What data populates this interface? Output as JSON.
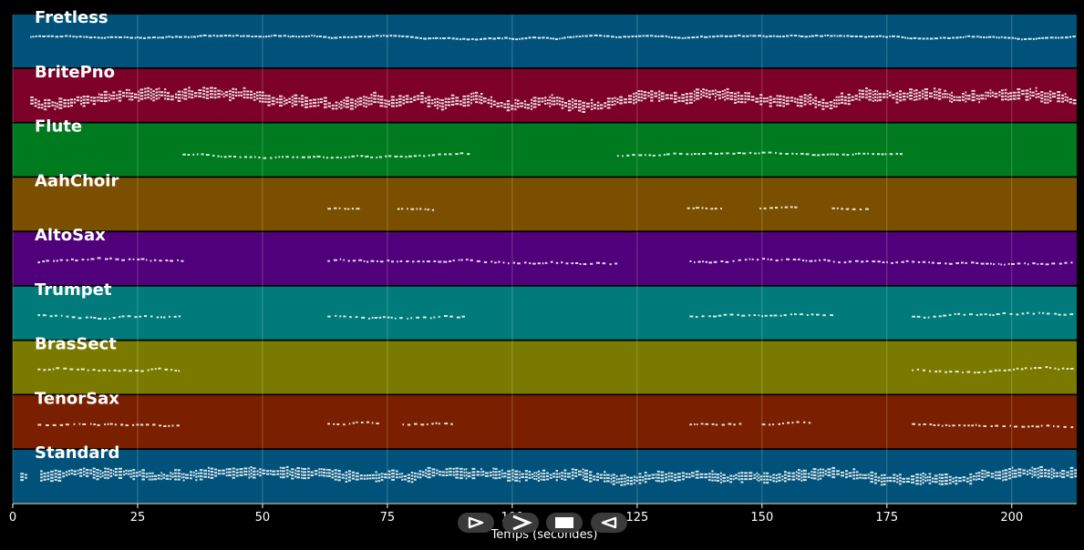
{
  "chart_data": {
    "type": "piano-roll",
    "title": "",
    "xlabel": "Temps (secondes)",
    "ylabel": "",
    "xlim": [
      0,
      213
    ],
    "xticks": [
      0,
      25,
      50,
      75,
      100,
      125,
      150,
      175,
      200
    ],
    "grid": true,
    "tracks": [
      {
        "name": "Fretless",
        "color": "#00527a",
        "segments": [
          [
            3.5,
            212.5
          ]
        ],
        "density": 0.9,
        "pitch_center": 0.68,
        "pitch_spread": 0.06
      },
      {
        "name": "BritePno",
        "color": "#7d0029",
        "segments": [
          [
            3.5,
            212.5
          ]
        ],
        "density": 1.0,
        "pitch_center": 0.45,
        "pitch_spread": 0.22
      },
      {
        "name": "Flute",
        "color": "#007a1f",
        "segments": [
          [
            34,
            91.5
          ],
          [
            121,
            178
          ]
        ],
        "density": 0.6,
        "pitch_center": 0.42,
        "pitch_spread": 0.08
      },
      {
        "name": "AahChoir",
        "color": "#7a4f00",
        "segments": [
          [
            63,
            69
          ],
          [
            77,
            84
          ],
          [
            135,
            142
          ],
          [
            149.5,
            156.5
          ],
          [
            164,
            171.5
          ]
        ],
        "density": 0.55,
        "pitch_center": 0.45,
        "pitch_spread": 0.05
      },
      {
        "name": "AltoSax",
        "color": "#50007a",
        "segments": [
          [
            5,
            34
          ],
          [
            63,
            120.5
          ],
          [
            135.5,
            212.5
          ]
        ],
        "density": 0.55,
        "pitch_center": 0.5,
        "pitch_spread": 0.1
      },
      {
        "name": "Trumpet",
        "color": "#007a7a",
        "segments": [
          [
            5,
            34
          ],
          [
            63,
            90
          ],
          [
            135.5,
            164.5
          ],
          [
            180,
            212.5
          ]
        ],
        "density": 0.5,
        "pitch_center": 0.5,
        "pitch_spread": 0.09
      },
      {
        "name": "BrasSect",
        "color": "#7a7a00",
        "segments": [
          [
            5,
            34
          ],
          [
            180,
            212.5
          ]
        ],
        "density": 0.55,
        "pitch_center": 0.52,
        "pitch_spread": 0.1
      },
      {
        "name": "TenorSax",
        "color": "#7a1f00",
        "segments": [
          [
            5,
            34
          ],
          [
            63,
            74
          ],
          [
            78,
            88.5
          ],
          [
            135.5,
            146
          ],
          [
            150,
            160
          ],
          [
            180,
            212.5
          ]
        ],
        "density": 0.5,
        "pitch_center": 0.5,
        "pitch_spread": 0.08
      },
      {
        "name": "Standard",
        "color": "#00527a",
        "segments": [
          [
            1.5,
            3
          ],
          [
            5.5,
            212.5
          ]
        ],
        "density": 1.0,
        "pitch_center": 0.58,
        "pitch_spread": 0.14
      }
    ]
  },
  "controls": {
    "buttons": [
      {
        "name": "play-outline-button",
        "icon": "play-outline-icon"
      },
      {
        "name": "next-button",
        "icon": "chevron-right-icon"
      },
      {
        "name": "stop-button",
        "icon": "stop-icon"
      },
      {
        "name": "back-button",
        "icon": "back-outline-icon"
      }
    ]
  }
}
